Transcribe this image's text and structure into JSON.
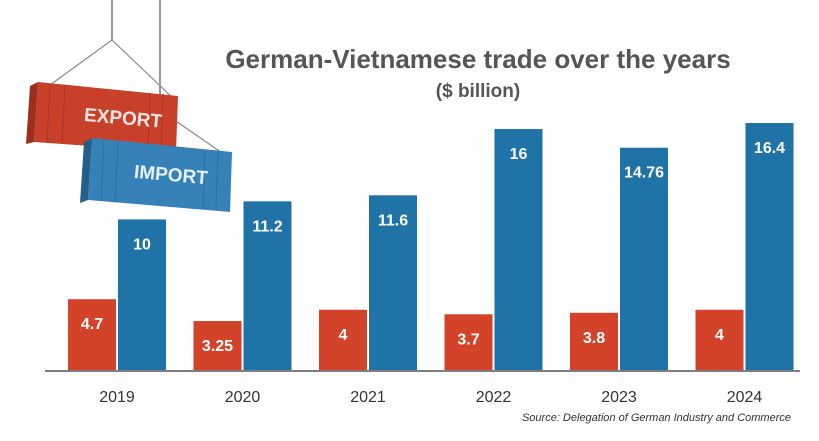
{
  "chart_data": {
    "type": "bar",
    "title": "German-Vietnamese trade over the years",
    "subtitle": "($ billion)",
    "categories": [
      "2019",
      "2020",
      "2021",
      "2022",
      "2023",
      "2024"
    ],
    "series": [
      {
        "name": "EXPORT",
        "color": "#d2432a",
        "values": [
          4.7,
          3.25,
          4,
          3.7,
          3.8,
          4
        ],
        "labels": [
          "4.7",
          "3.25",
          "4",
          "3.7",
          "3.8",
          "4"
        ]
      },
      {
        "name": "IMPORT",
        "color": "#1f73a6",
        "values": [
          10,
          11.2,
          11.6,
          16,
          14.76,
          16.4
        ],
        "labels": [
          "10",
          "11.2",
          "11.6",
          "16",
          "14.76",
          "16.4"
        ]
      }
    ],
    "ylim": [
      0,
      17
    ],
    "grid": false,
    "legend": "top-left"
  },
  "source": "Source: Delegation of German Industry and Commerce",
  "colors": {
    "export": "#d2432a",
    "import": "#1f73a6",
    "title": "#555555"
  }
}
